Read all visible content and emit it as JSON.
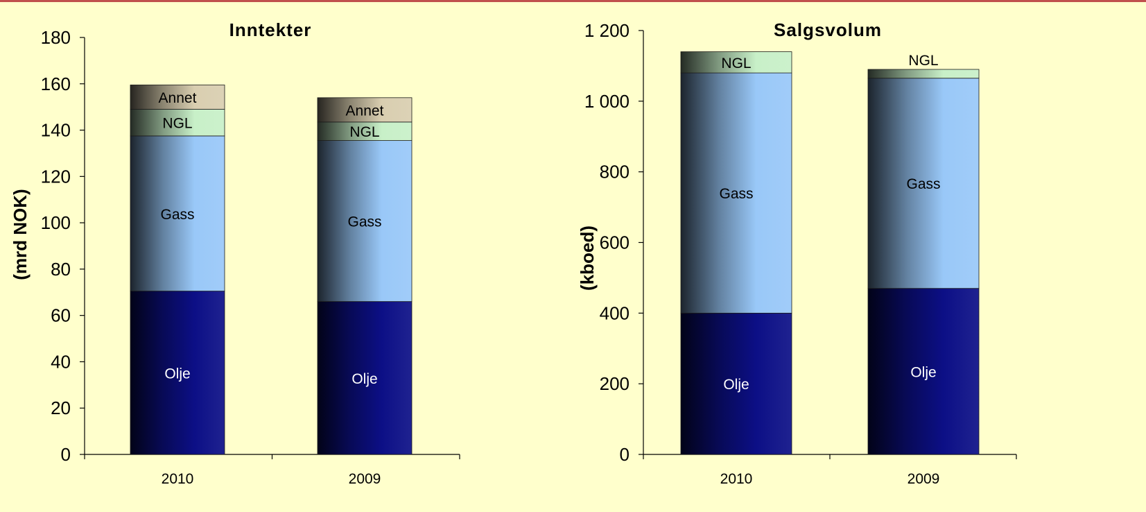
{
  "colors": {
    "background": "#ffffcc",
    "accent_rule": "#c0504d",
    "olje": "#0c0f86",
    "gass": "#99c8f8",
    "ngl": "#c8f0c8",
    "annet": "#d9ceb0"
  },
  "chart_data": [
    {
      "type": "bar",
      "stacked": true,
      "title": "Inntekter",
      "ylabel": "(mrd NOK)",
      "xlabel": "",
      "categories": [
        "2010",
        "2009"
      ],
      "ylim": [
        0,
        180
      ],
      "ytick_step": 20,
      "ytick_labels": [
        "0",
        "20",
        "40",
        "60",
        "80",
        "100",
        "120",
        "140",
        "160",
        "180"
      ],
      "grid": false,
      "series": [
        {
          "name": "Olje",
          "values": [
            70.5,
            66
          ],
          "color": "#0c0f86"
        },
        {
          "name": "Gass",
          "values": [
            67,
            69.5
          ],
          "color": "#99c8f8"
        },
        {
          "name": "NGL",
          "values": [
            11.5,
            8
          ],
          "color": "#c8f0c8"
        },
        {
          "name": "Annet",
          "values": [
            10.5,
            10.5
          ],
          "color": "#d9ceb0"
        }
      ]
    },
    {
      "type": "bar",
      "stacked": true,
      "title": "Salgsvolum",
      "ylabel": "(kboed)",
      "xlabel": "",
      "categories": [
        "2010",
        "2009"
      ],
      "ylim": [
        0,
        1200
      ],
      "ytick_step": 200,
      "ytick_labels": [
        "0",
        "200",
        "400",
        "600",
        "800",
        "1 000",
        "1 200"
      ],
      "grid": false,
      "series": [
        {
          "name": "Olje",
          "values": [
            400,
            470
          ],
          "color": "#0c0f86"
        },
        {
          "name": "Gass",
          "values": [
            680,
            595
          ],
          "color": "#99c8f8"
        },
        {
          "name": "NGL",
          "values": [
            60,
            25
          ],
          "color": "#c8f0c8"
        }
      ]
    }
  ]
}
